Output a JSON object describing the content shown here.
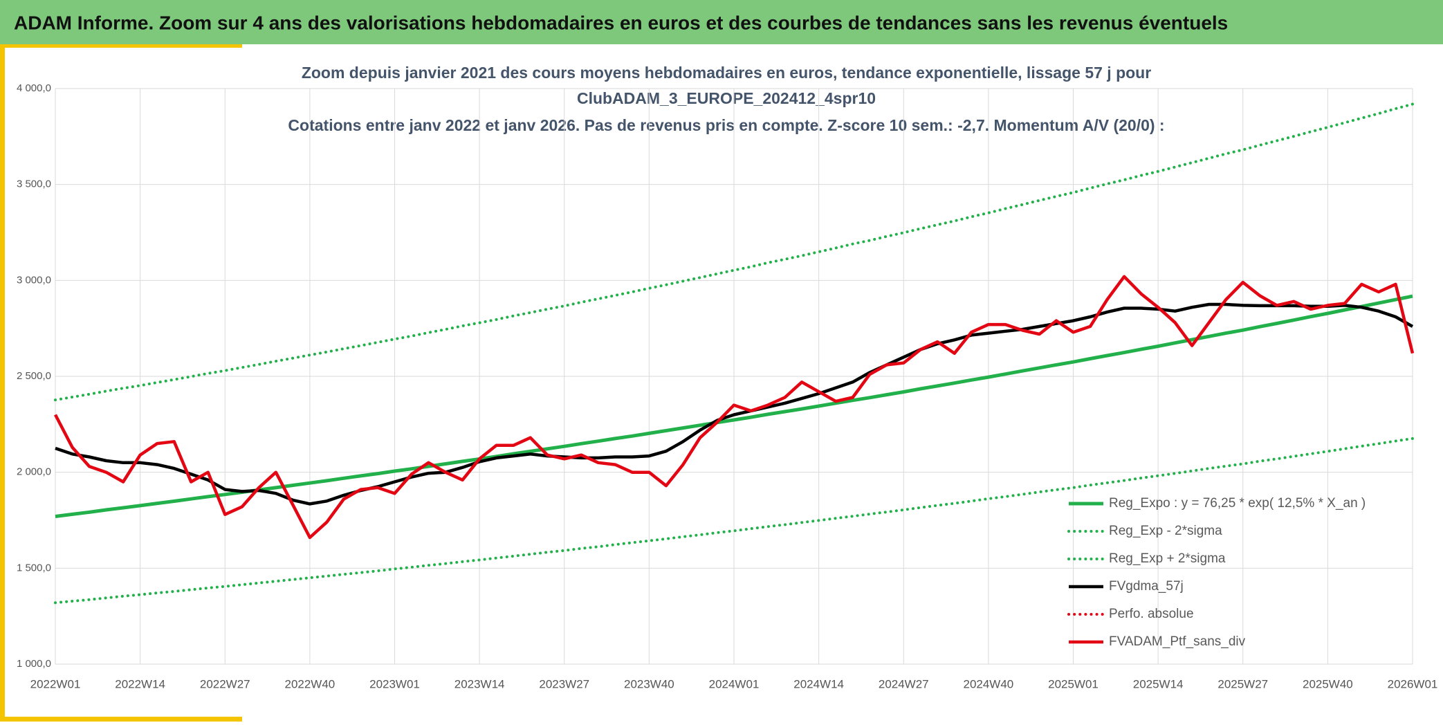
{
  "header": {
    "title": "ADAM Informe. Zoom sur 4 ans des valorisations hebdomadaires en euros et des courbes de tendances sans les revenus éventuels"
  },
  "chart_data": {
    "type": "line",
    "title": [
      "Zoom depuis janvier 2021 des cours moyens hebdomadaires en euros, tendance exponentielle, lissage 57 j pour",
      "ClubADAM_3_EUROPE_202412_4spr10",
      "Cotations entre janv 2022 et janv 2026. Pas de revenus pris en compte. Z-score 10 sem.: -2,7. Momentum A/V (20/0) :"
    ],
    "categories": [
      "2022W01",
      null,
      null,
      null,
      null,
      "2022W14",
      null,
      null,
      null,
      null,
      "2022W27",
      null,
      null,
      null,
      null,
      "2022W40",
      null,
      null,
      null,
      null,
      "2023W01",
      null,
      null,
      null,
      null,
      "2023W14",
      null,
      null,
      null,
      null,
      "2023W27",
      null,
      null,
      null,
      null,
      "2023W40",
      null,
      null,
      null,
      null,
      "2024W01",
      null,
      null,
      null,
      null,
      "2024W14",
      null,
      null,
      null,
      null,
      "2024W27",
      null,
      null,
      null,
      null,
      "2024W40",
      null,
      null,
      null,
      null,
      "2025W01",
      null,
      null,
      null,
      null,
      "2025W14",
      null,
      null,
      null,
      null,
      "2025W27",
      null,
      null,
      null,
      null,
      "2025W40",
      null,
      null,
      null,
      null,
      "2026W01"
    ],
    "ylim": [
      1000,
      4000
    ],
    "yticks": [
      {
        "value": 1000,
        "label": "1 000,0"
      },
      {
        "value": 1500,
        "label": "1 500,0"
      },
      {
        "value": 2000,
        "label": "2 000,0"
      },
      {
        "value": 2500,
        "label": "2 500,0"
      },
      {
        "value": 3000,
        "label": "3 000,0"
      },
      {
        "value": 3500,
        "label": "3 500,0"
      },
      {
        "value": 4000,
        "label": "4 000,0"
      }
    ],
    "grid": true,
    "legend": "bottom-right",
    "series": [
      {
        "name": "Reg_Expo : y = 76,25 * exp( 12,5% *  X_an )",
        "color": "#22b04b",
        "style": "solid",
        "values": [
          1770,
          1781,
          1792,
          1804,
          1815,
          1826,
          1838,
          1849,
          1861,
          1873,
          1884,
          1896,
          1908,
          1920,
          1932,
          1944,
          1956,
          1969,
          1981,
          1993,
          2006,
          2018,
          2031,
          2044,
          2057,
          2069,
          2082,
          2096,
          2109,
          2122,
          2135,
          2149,
          2162,
          2176,
          2189,
          2203,
          2217,
          2231,
          2245,
          2259,
          2273,
          2287,
          2302,
          2316,
          2330,
          2345,
          2360,
          2375,
          2389,
          2404,
          2419,
          2435,
          2450,
          2465,
          2481,
          2496,
          2512,
          2528,
          2544,
          2560,
          2575,
          2592,
          2608,
          2624,
          2641,
          2657,
          2674,
          2691,
          2708,
          2725,
          2741,
          2759,
          2776,
          2793,
          2811,
          2828,
          2846,
          2864,
          2882,
          2900,
          2918
        ]
      },
      {
        "name": "Reg_Exp - 2*sigma",
        "color": "#22b04b",
        "style": "dotted",
        "values": [
          1320,
          1328,
          1336,
          1345,
          1354,
          1362,
          1371,
          1379,
          1388,
          1397,
          1405,
          1414,
          1423,
          1432,
          1441,
          1450,
          1459,
          1468,
          1477,
          1486,
          1496,
          1505,
          1515,
          1524,
          1534,
          1543,
          1553,
          1563,
          1573,
          1583,
          1592,
          1603,
          1612,
          1623,
          1633,
          1643,
          1653,
          1664,
          1674,
          1685,
          1695,
          1706,
          1717,
          1727,
          1738,
          1749,
          1760,
          1771,
          1782,
          1793,
          1804,
          1816,
          1827,
          1838,
          1850,
          1862,
          1873,
          1885,
          1897,
          1909,
          1920,
          1933,
          1945,
          1957,
          1970,
          1982,
          1994,
          2007,
          2020,
          2032,
          2044,
          2058,
          2070,
          2083,
          2096,
          2109,
          2123,
          2136,
          2149,
          2163,
          2176
        ]
      },
      {
        "name": "Reg_Exp + 2*sigma",
        "color": "#22b04b",
        "style": "dotted",
        "values": [
          2377,
          2392,
          2407,
          2423,
          2438,
          2452,
          2468,
          2483,
          2499,
          2515,
          2530,
          2546,
          2562,
          2579,
          2595,
          2611,
          2627,
          2644,
          2660,
          2677,
          2694,
          2710,
          2728,
          2745,
          2763,
          2779,
          2796,
          2815,
          2832,
          2850,
          2867,
          2886,
          2904,
          2922,
          2940,
          2959,
          2977,
          2996,
          3015,
          3034,
          3053,
          3071,
          3092,
          3110,
          3129,
          3149,
          3169,
          3190,
          3208,
          3229,
          3249,
          3270,
          3290,
          3310,
          3332,
          3352,
          3374,
          3395,
          3417,
          3438,
          3458,
          3481,
          3503,
          3524,
          3547,
          3568,
          3591,
          3614,
          3637,
          3660,
          3681,
          3705,
          3728,
          3751,
          3775,
          3798,
          3822,
          3846,
          3870,
          3895,
          3919
        ]
      },
      {
        "name": "FVgdma_57j",
        "color": "#000000",
        "style": "solid",
        "values": [
          2125,
          2095,
          2080,
          2060,
          2050,
          2050,
          2040,
          2020,
          1990,
          1960,
          1910,
          1900,
          1905,
          1890,
          1855,
          1835,
          1850,
          1880,
          1905,
          1925,
          1950,
          1975,
          1995,
          2000,
          2025,
          2055,
          2075,
          2085,
          2095,
          2085,
          2080,
          2075,
          2075,
          2080,
          2080,
          2085,
          2110,
          2160,
          2220,
          2270,
          2300,
          2320,
          2340,
          2360,
          2385,
          2410,
          2440,
          2470,
          2520,
          2560,
          2600,
          2640,
          2670,
          2690,
          2715,
          2725,
          2735,
          2745,
          2760,
          2775,
          2790,
          2810,
          2835,
          2855,
          2855,
          2850,
          2840,
          2860,
          2875,
          2875,
          2870,
          2868,
          2868,
          2868,
          2865,
          2865,
          2870,
          2860,
          2840,
          2810,
          2760
        ]
      },
      {
        "name": "Perfo. absolue",
        "color": "#e30613",
        "style": "dotted"
      },
      {
        "name": "FVADAM_Ptf_sans_div",
        "color": "#e30613",
        "style": "solid",
        "values": [
          2300,
          2130,
          2030,
          2000,
          1950,
          2090,
          2150,
          2160,
          1950,
          2000,
          1780,
          1820,
          1920,
          2000,
          1830,
          1660,
          1740,
          1860,
          1910,
          1920,
          1890,
          1990,
          2050,
          2000,
          1960,
          2070,
          2140,
          2140,
          2180,
          2090,
          2070,
          2090,
          2050,
          2040,
          2000,
          2000,
          1930,
          2040,
          2180,
          2260,
          2350,
          2320,
          2350,
          2390,
          2470,
          2420,
          2370,
          2390,
          2510,
          2560,
          2570,
          2640,
          2680,
          2620,
          2730,
          2770,
          2770,
          2740,
          2720,
          2790,
          2730,
          2760,
          2900,
          3020,
          2930,
          2860,
          2780,
          2660,
          2780,
          2900,
          2990,
          2920,
          2870,
          2890,
          2850,
          2870,
          2880,
          2980,
          2940,
          2980,
          2620
        ]
      }
    ]
  }
}
